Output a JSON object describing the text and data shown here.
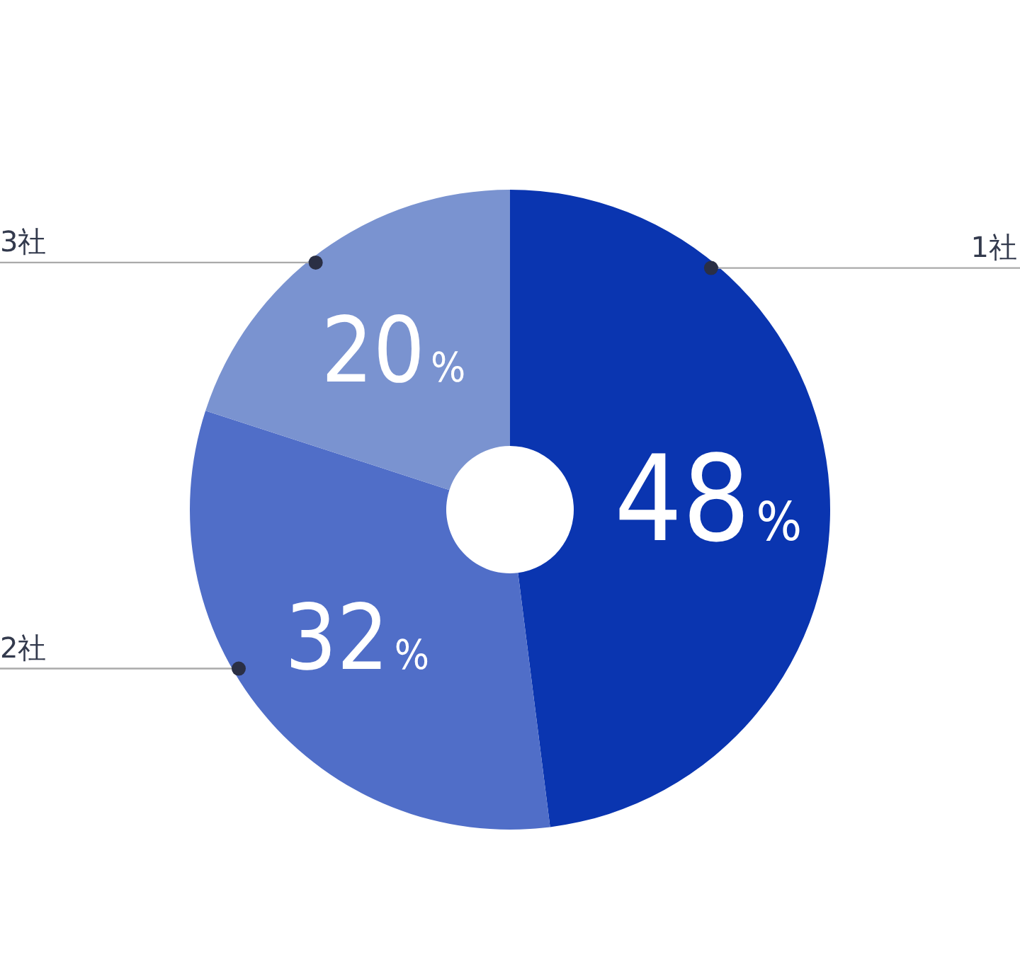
{
  "chart_data": {
    "type": "donut",
    "categories": [
      "1社",
      "2社",
      "3社"
    ],
    "values": [
      48,
      32,
      20
    ],
    "colors": [
      "#0a35b0",
      "#506ec8",
      "#7a93d0"
    ],
    "value_labels": [
      "48%",
      "32%",
      "20%"
    ]
  }
}
